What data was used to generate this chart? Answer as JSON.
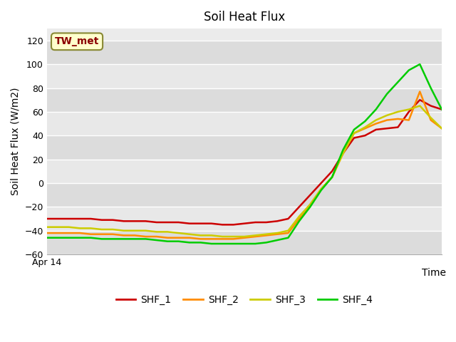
{
  "title": "Soil Heat Flux",
  "xlabel": "Time",
  "ylabel": "Soil Heat Flux (W/m2)",
  "xlim": [
    0,
    36
  ],
  "ylim": [
    -60,
    130
  ],
  "yticks": [
    -60,
    -40,
    -20,
    0,
    20,
    40,
    60,
    80,
    100,
    120
  ],
  "annotation_text": "TW_met",
  "annotation_color": "#8B0000",
  "annotation_bg": "#FFFFCC",
  "annotation_edge": "#888833",
  "plot_bg": "#E8E8E8",
  "band_light": "#EBEBEB",
  "band_dark": "#D8D8D8",
  "grid_color": "#FFFFFF",
  "series": {
    "SHF_1": {
      "color": "#CC0000",
      "x": [
        0,
        1,
        2,
        3,
        4,
        5,
        6,
        7,
        8,
        9,
        10,
        11,
        12,
        13,
        14,
        15,
        16,
        17,
        18,
        19,
        20,
        21,
        22,
        23,
        24,
        25,
        26,
        27,
        28,
        29,
        30,
        31,
        32,
        33,
        34,
        35,
        36
      ],
      "y": [
        -30,
        -30,
        -30,
        -30,
        -30,
        -31,
        -31,
        -32,
        -32,
        -32,
        -33,
        -33,
        -33,
        -34,
        -34,
        -34,
        -35,
        -35,
        -34,
        -33,
        -33,
        -32,
        -30,
        -20,
        -10,
        0,
        10,
        25,
        38,
        40,
        45,
        46,
        47,
        60,
        70,
        65,
        62
      ]
    },
    "SHF_2": {
      "color": "#FF8C00",
      "x": [
        0,
        1,
        2,
        3,
        4,
        5,
        6,
        7,
        8,
        9,
        10,
        11,
        12,
        13,
        14,
        15,
        16,
        17,
        18,
        19,
        20,
        21,
        22,
        23,
        24,
        25,
        26,
        27,
        28,
        29,
        30,
        31,
        32,
        33,
        34,
        35,
        36
      ],
      "y": [
        -42,
        -42,
        -42,
        -42,
        -43,
        -43,
        -43,
        -44,
        -44,
        -45,
        -45,
        -46,
        -46,
        -46,
        -47,
        -47,
        -47,
        -47,
        -46,
        -45,
        -44,
        -43,
        -42,
        -30,
        -18,
        -5,
        5,
        25,
        42,
        46,
        50,
        53,
        54,
        53,
        77,
        53,
        46
      ]
    },
    "SHF_3": {
      "color": "#CCCC00",
      "x": [
        0,
        1,
        2,
        3,
        4,
        5,
        6,
        7,
        8,
        9,
        10,
        11,
        12,
        13,
        14,
        15,
        16,
        17,
        18,
        19,
        20,
        21,
        22,
        23,
        24,
        25,
        26,
        27,
        28,
        29,
        30,
        31,
        32,
        33,
        34,
        35,
        36
      ],
      "y": [
        -37,
        -37,
        -37,
        -38,
        -38,
        -39,
        -39,
        -40,
        -40,
        -40,
        -41,
        -41,
        -42,
        -43,
        -44,
        -44,
        -45,
        -45,
        -45,
        -44,
        -43,
        -42,
        -40,
        -28,
        -18,
        -5,
        5,
        25,
        42,
        47,
        53,
        57,
        60,
        62,
        65,
        55,
        46
      ]
    },
    "SHF_4": {
      "color": "#00CC00",
      "x": [
        0,
        1,
        2,
        3,
        4,
        5,
        6,
        7,
        8,
        9,
        10,
        11,
        12,
        13,
        14,
        15,
        16,
        17,
        18,
        19,
        20,
        21,
        22,
        23,
        24,
        25,
        26,
        27,
        28,
        29,
        30,
        31,
        32,
        33,
        34,
        35,
        36
      ],
      "y": [
        -46,
        -46,
        -46,
        -46,
        -46,
        -47,
        -47,
        -47,
        -47,
        -47,
        -48,
        -49,
        -49,
        -50,
        -50,
        -51,
        -51,
        -51,
        -51,
        -51,
        -50,
        -48,
        -46,
        -32,
        -20,
        -6,
        5,
        28,
        45,
        52,
        62,
        75,
        85,
        95,
        100,
        80,
        62
      ]
    }
  },
  "legend": [
    {
      "label": "SHF_1",
      "color": "#CC0000"
    },
    {
      "label": "SHF_2",
      "color": "#FF8C00"
    },
    {
      "label": "SHF_3",
      "color": "#CCCC00"
    },
    {
      "label": "SHF_4",
      "color": "#00CC00"
    }
  ]
}
